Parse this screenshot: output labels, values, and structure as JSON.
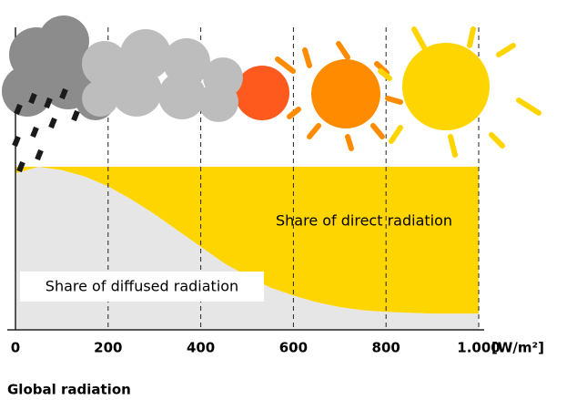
{
  "chart_data": {
    "type": "stacked-area",
    "x": [
      0,
      50,
      100,
      150,
      200,
      250,
      300,
      350,
      400,
      450,
      500,
      550,
      600,
      650,
      700,
      750,
      800,
      850,
      900,
      950,
      1000
    ],
    "series": [
      {
        "name": "Share of diffused radiation",
        "color": "#e6e6e6",
        "values": [
          96,
          100,
          98,
          94,
          88,
          80,
          71,
          61,
          51,
          41,
          33,
          26,
          21,
          17,
          14,
          12,
          11,
          10.5,
          10,
          10,
          10
        ]
      },
      {
        "name": "Share of direct radiation",
        "color": "#ffd500",
        "values": [
          4,
          0,
          2,
          6,
          12,
          20,
          29,
          39,
          49,
          59,
          67,
          74,
          79,
          83,
          86,
          88,
          89,
          89.5,
          90,
          90,
          90
        ]
      }
    ],
    "xlim": [
      0,
      1000
    ],
    "ylim": [
      0,
      100
    ],
    "xticks": [
      0,
      200,
      400,
      600,
      800,
      {
        "value": 1000,
        "label": "1.000"
      }
    ],
    "x_unit": "[W/m²]",
    "xlabel": "Global radiation",
    "grid": true
  }
}
